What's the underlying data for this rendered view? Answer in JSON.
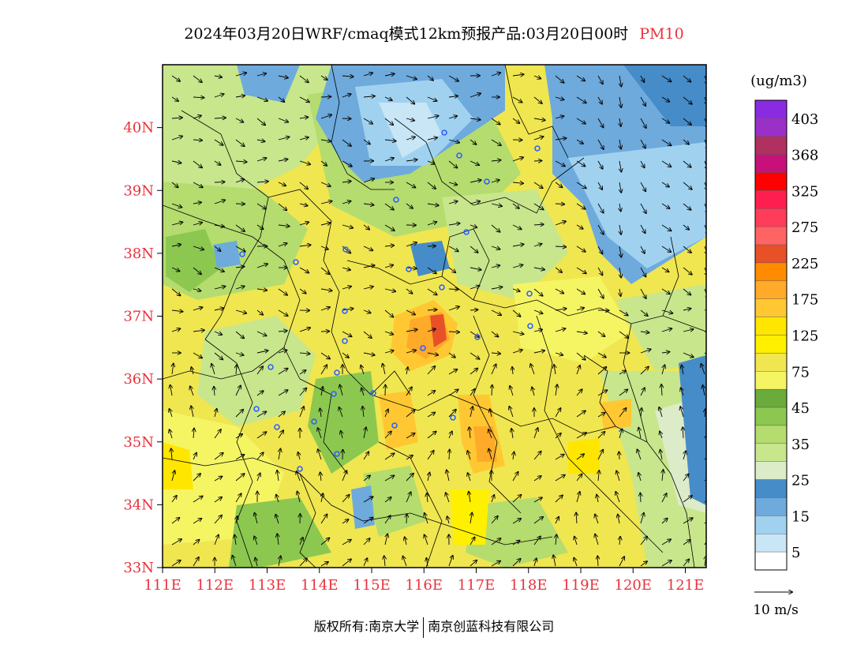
{
  "header": {
    "title": "2024年03月20日WRF/cmaq模式12km预报产品:03月20日00时",
    "variable": "PM10"
  },
  "map": {
    "lat_labels": [
      "40N",
      "39N",
      "38N",
      "37N",
      "36N",
      "35N",
      "34N",
      "33N"
    ],
    "lon_labels": [
      "111E",
      "112E",
      "113E",
      "114E",
      "115E",
      "116E",
      "117E",
      "118E",
      "119E",
      "120E",
      "121E"
    ],
    "lon_range": [
      111,
      121.4
    ],
    "lat_range": [
      33,
      41
    ],
    "axis_label_color": "#e8323c",
    "station_marker_color": "#3060ff"
  },
  "legend": {
    "unit": "(ug/m3)",
    "labels": [
      "403",
      "368",
      "325",
      "275",
      "225",
      "175",
      "125",
      "75",
      "45",
      "35",
      "25",
      "15",
      "5"
    ],
    "colors": [
      "#8a2be2",
      "#9b30c8",
      "#b03060",
      "#c8107a",
      "#ff0000",
      "#ff1e50",
      "#ff3c5a",
      "#ff6464",
      "#e85028",
      "#ff8c00",
      "#ffaa28",
      "#ffc832",
      "#ffe600",
      "#fff000",
      "#f0e650",
      "#f5f564",
      "#6aab3c",
      "#8cc850",
      "#b4dc6e",
      "#c8e68c",
      "#dcebc8",
      "#468cc8",
      "#6eaadc",
      "#a0d2f0",
      "#c8e6f5",
      "#ffffff"
    ],
    "vector_label": "10 m/s"
  },
  "footer": {
    "left": "版权所有:南京大学",
    "right": "南京创蓝科技有限公司"
  }
}
